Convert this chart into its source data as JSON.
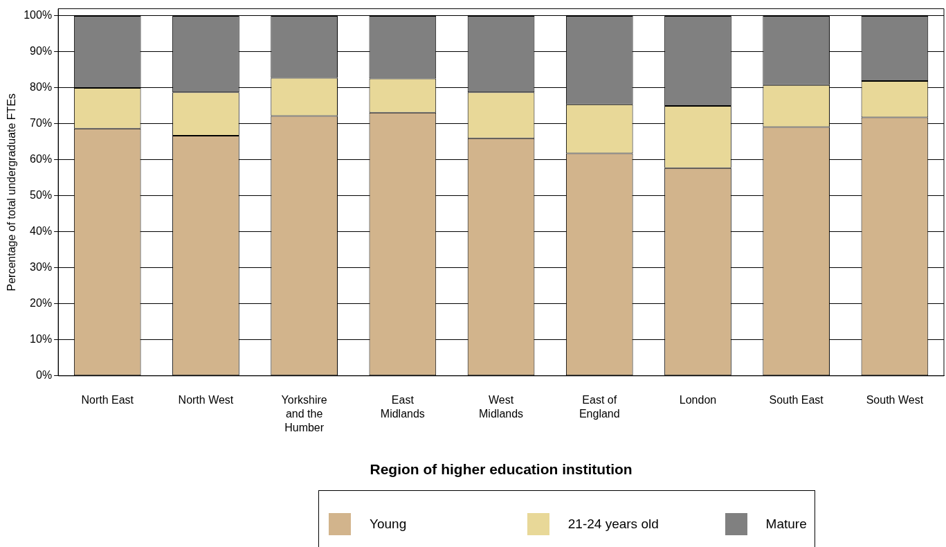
{
  "chart_data": {
    "type": "bar",
    "stacked": true,
    "xlabel": "Region of higher education institution",
    "ylabel": "Percentage of total undergraduate FTEs",
    "categories": [
      "North East",
      "North West",
      "Yorkshire and the Humber",
      "East Midlands",
      "West Midlands",
      "East of England",
      "London",
      "South East",
      "South West"
    ],
    "series": [
      {
        "name": "Young",
        "color": "#d2b48c",
        "values": [
          68.7,
          66.7,
          72.2,
          73.1,
          66.0,
          61.8,
          57.7,
          69.1,
          71.8
        ]
      },
      {
        "name": "21-24 years old",
        "color": "#e8d898",
        "values": [
          11.3,
          12.1,
          10.6,
          9.5,
          12.8,
          13.6,
          17.3,
          11.7,
          10.1
        ]
      },
      {
        "name": "Mature",
        "color": "#808080",
        "values": [
          20.0,
          21.2,
          17.2,
          17.4,
          21.2,
          24.6,
          25.0,
          19.2,
          18.1
        ]
      }
    ],
    "ylim": [
      0,
      102
    ],
    "yticks": [
      {
        "value": 0,
        "label": "0%"
      },
      {
        "value": 10,
        "label": "10%"
      },
      {
        "value": 20,
        "label": "20%"
      },
      {
        "value": 30,
        "label": "30%"
      },
      {
        "value": 40,
        "label": "40%"
      },
      {
        "value": 50,
        "label": "50%"
      },
      {
        "value": 60,
        "label": "60%"
      },
      {
        "value": 70,
        "label": "70%"
      },
      {
        "value": 80,
        "label": "80%"
      },
      {
        "value": 90,
        "label": "90%"
      },
      {
        "value": 100,
        "label": "100%"
      }
    ],
    "grid": "y",
    "legend": "bottom"
  }
}
